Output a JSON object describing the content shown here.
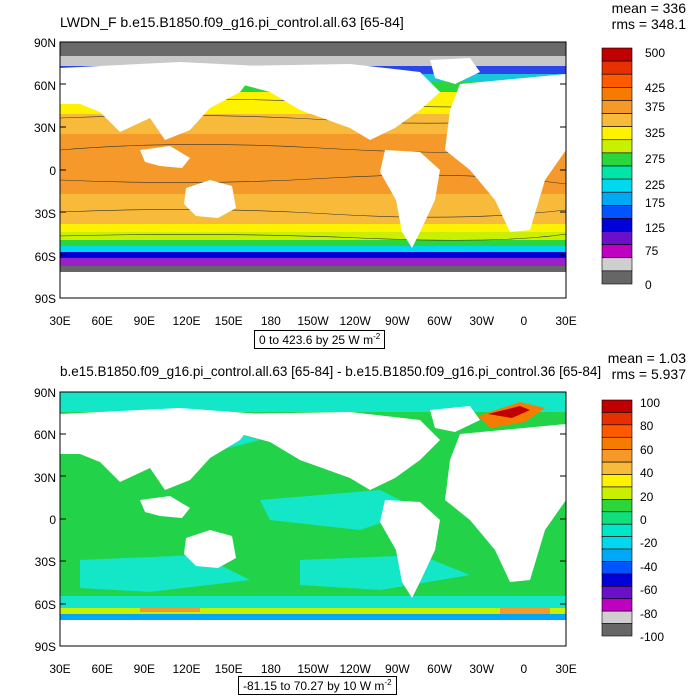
{
  "panel1": {
    "title": "LWDN_F b.e15.B1850.f09_g16.pi_control.all.63 [65-84]",
    "mean": "mean = 336",
    "rms": "rms = 348.1",
    "lat_labels": [
      "90N",
      "60N",
      "30N",
      "0",
      "30S",
      "60S",
      "90S"
    ],
    "lon_labels": [
      "30E",
      "60E",
      "90E",
      "120E",
      "150E",
      "180",
      "150W",
      "120W",
      "90W",
      "60W",
      "30W",
      "0",
      "30E"
    ],
    "colorbar_labels": [
      "500",
      "425",
      "375",
      "325",
      "275",
      "225",
      "175",
      "125",
      "75",
      "0"
    ],
    "range_text_main": "0 to 423.6 by 25  W m",
    "range_text_sup": "-2"
  },
  "panel2": {
    "title": "b.e15.B1850.f09_g16.pi_control.all.63 [65-84] - b.e15.B1850.f09_g16.pi_control.36 [65-84]",
    "mean": "mean = 1.03",
    "rms": "rms = 5.937",
    "lat_labels": [
      "90N",
      "60N",
      "30N",
      "0",
      "30S",
      "60S",
      "90S"
    ],
    "lon_labels": [
      "30E",
      "60E",
      "90E",
      "120E",
      "150E",
      "180",
      "150W",
      "120W",
      "90W",
      "60W",
      "30W",
      "0",
      "30E"
    ],
    "colorbar_labels": [
      "100",
      "80",
      "60",
      "40",
      "20",
      "0",
      "-20",
      "-40",
      "-60",
      "-80",
      "-100"
    ],
    "range_text_main": "-81.15 to 70.27 by 10  W m",
    "range_text_sup": "-2"
  },
  "colors": {
    "panel1_scale": [
      "#c00000",
      "#e63000",
      "#ff5a00",
      "#f57c00",
      "#f59a2a",
      "#f7ba3a",
      "#fff200",
      "#c8f000",
      "#2ad63b",
      "#00e6a8",
      "#00d8f0",
      "#00a8f5",
      "#0055ff",
      "#0000d8",
      "#6a10c8",
      "#c000c0",
      "#cfcfcf",
      "#666666"
    ],
    "panel2_scale": [
      "#c00000",
      "#e63000",
      "#ff5a00",
      "#f57c00",
      "#f59a2a",
      "#f7ba3a",
      "#fff200",
      "#c8f000",
      "#2ad63b",
      "#11e07a",
      "#00e6c8",
      "#00d8f0",
      "#00a8f5",
      "#0055ff",
      "#0000d8",
      "#6a10c8",
      "#c000c0",
      "#cfcfcf",
      "#666666"
    ]
  }
}
